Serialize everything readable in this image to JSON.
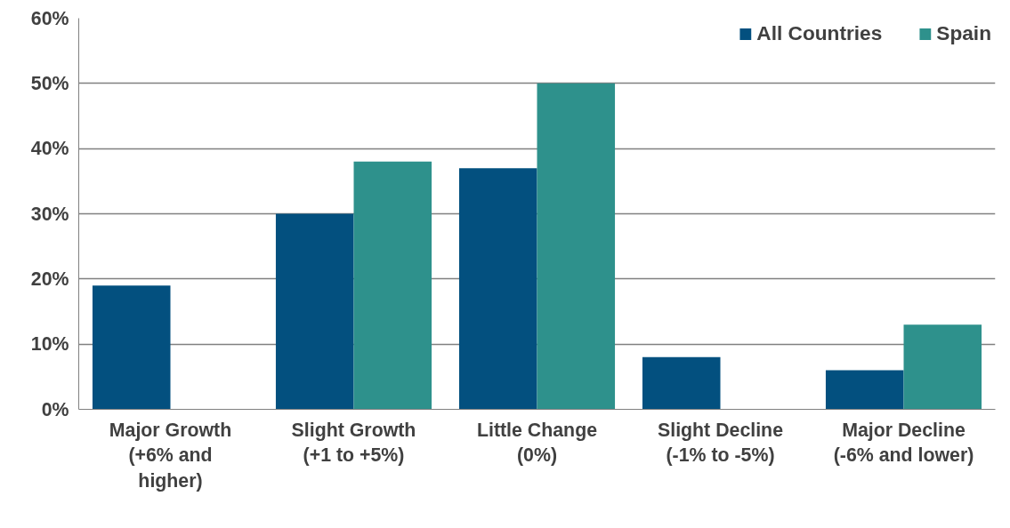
{
  "chart_data": {
    "type": "bar",
    "categories": [
      "Major Growth\n(+6% and\nhigher)",
      "Slight Growth\n(+1 to +5%)",
      "Little Change\n(0%)",
      "Slight Decline\n(-1% to -5%)",
      "Major Decline\n(-6% and lower)"
    ],
    "series": [
      {
        "name": "All Countries",
        "color": "#03507f",
        "values": [
          19,
          30,
          37,
          8,
          6
        ]
      },
      {
        "name": "Spain",
        "color": "#2e918c",
        "values": [
          0,
          38,
          50,
          0,
          13
        ]
      }
    ],
    "ylim": [
      0,
      60
    ],
    "yticks": [
      {
        "value": 0,
        "label": "0%"
      },
      {
        "value": 10,
        "label": "10%"
      },
      {
        "value": 20,
        "label": "20%"
      },
      {
        "value": 30,
        "label": "30%"
      },
      {
        "value": 40,
        "label": "40%"
      },
      {
        "value": 50,
        "label": "50%"
      },
      {
        "value": 60,
        "label": "60%"
      }
    ],
    "grid": "y",
    "legend": "top right"
  }
}
